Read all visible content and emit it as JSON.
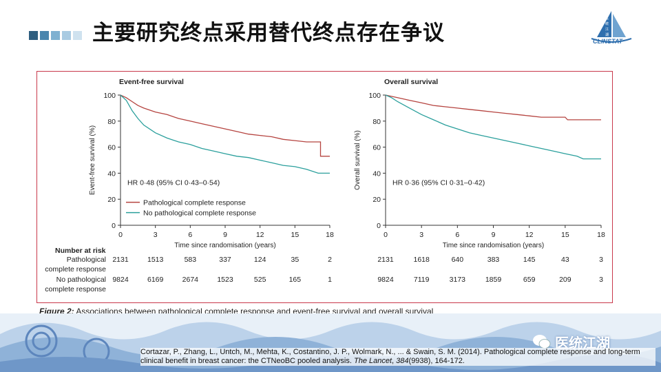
{
  "slide": {
    "title": "主要研究终点采用替代终点存在争议",
    "square_colors": [
      "#2f5f80",
      "#4a86ae",
      "#7fb1d1",
      "#a9cbe2",
      "#cfe2ef"
    ],
    "logo_text": "CLINSTAT",
    "logo_chars": [
      "医",
      "统",
      "江",
      "湖"
    ],
    "caption_bold": "Figure 2:",
    "caption_text": " Associations between pathological complete response and event-free survival and overall survival",
    "citation_pre": "Cortazar, P., Zhang, L., Untch, M., Mehta, K., Costantino, J. P., Wolmark, N., ... & Swain, S. M. (2014). Pathological complete response and long-term clinical benefit in breast cancer: the CTNeoBC pooled analysis. ",
    "citation_journal": "The Lancet",
    "citation_sep": ", ",
    "citation_volume": "384",
    "citation_post": "(9938), 164-172.",
    "watermark": "医统江湖",
    "colors": {
      "red_series": "#b5433f",
      "teal_series": "#2a9f9c",
      "frame": "#c8374a"
    }
  },
  "chart_data": [
    {
      "type": "line",
      "title": "Event-free survival",
      "xlabel": "Time since randomisation (years)",
      "ylabel": "Event-free survival (%)",
      "xlim": [
        0,
        18
      ],
      "ylim": [
        0,
        100
      ],
      "xticks": [
        0,
        3,
        6,
        9,
        12,
        15,
        18
      ],
      "yticks": [
        0,
        20,
        40,
        60,
        80,
        100
      ],
      "annotation": "HR 0·48 (95% CI 0·43–0·54)",
      "legend_position": "bottom-left",
      "series": [
        {
          "name": "Pathological complete response",
          "color": "#b5433f",
          "x": [
            0,
            0.5,
            1,
            1.5,
            2,
            3,
            4,
            5,
            6,
            7,
            8,
            9,
            10,
            11,
            12,
            13,
            14,
            15,
            16,
            17,
            17.2,
            17.2,
            18
          ],
          "y": [
            100,
            98,
            95,
            92,
            90,
            87,
            85,
            82,
            80,
            78,
            76,
            74,
            72,
            70,
            69,
            68,
            66,
            65,
            64,
            64,
            64,
            53,
            53
          ]
        },
        {
          "name": "No pathological complete response",
          "color": "#2a9f9c",
          "x": [
            0,
            0.5,
            1,
            1.5,
            2,
            3,
            4,
            5,
            6,
            7,
            8,
            9,
            10,
            11,
            12,
            13,
            14,
            15,
            16,
            17,
            18
          ],
          "y": [
            100,
            96,
            88,
            82,
            77,
            71,
            67,
            64,
            62,
            59,
            57,
            55,
            53,
            52,
            50,
            48,
            46,
            45,
            43,
            40,
            40
          ]
        }
      ],
      "number_at_risk": {
        "header": "Number at risk",
        "rows": [
          {
            "label": [
              "Pathological",
              "complete response"
            ],
            "values": [
              "2131",
              "1513",
              "583",
              "337",
              "124",
              "35",
              "2"
            ]
          },
          {
            "label": [
              "No pathological",
              "complete response"
            ],
            "values": [
              "9824",
              "6169",
              "2674",
              "1523",
              "525",
              "165",
              "1"
            ]
          }
        ]
      }
    },
    {
      "type": "line",
      "title": "Overall survival",
      "xlabel": "Time since randomisation (years)",
      "ylabel": "Overall survival (%)",
      "xlim": [
        0,
        18
      ],
      "ylim": [
        0,
        100
      ],
      "xticks": [
        0,
        3,
        6,
        9,
        12,
        15,
        18
      ],
      "yticks": [
        0,
        20,
        40,
        60,
        80,
        100
      ],
      "annotation": "HR 0·36 (95% CI 0·31–0·42)",
      "series": [
        {
          "name": "Pathological complete response",
          "color": "#b5433f",
          "x": [
            0,
            0.5,
            1,
            2,
            3,
            4,
            5,
            6,
            7,
            8,
            9,
            10,
            11,
            12,
            13,
            14,
            15,
            15.2,
            16,
            17,
            18
          ],
          "y": [
            100,
            99,
            98,
            96,
            94,
            92,
            91,
            90,
            89,
            88,
            87,
            86,
            85,
            84,
            83,
            83,
            83,
            81,
            81,
            81,
            81
          ]
        },
        {
          "name": "No pathological complete response",
          "color": "#2a9f9c",
          "x": [
            0,
            0.5,
            1,
            2,
            3,
            4,
            5,
            6,
            7,
            8,
            9,
            10,
            11,
            12,
            13,
            14,
            15,
            16,
            16.5,
            17,
            18
          ],
          "y": [
            100,
            98,
            95,
            90,
            85,
            81,
            77,
            74,
            71,
            69,
            67,
            65,
            63,
            61,
            59,
            57,
            55,
            53,
            51,
            51,
            51
          ]
        }
      ],
      "number_at_risk": {
        "rows": [
          {
            "values": [
              "2131",
              "1618",
              "640",
              "383",
              "145",
              "43",
              "3"
            ]
          },
          {
            "values": [
              "9824",
              "7119",
              "3173",
              "1859",
              "659",
              "209",
              "3"
            ]
          }
        ]
      }
    }
  ]
}
